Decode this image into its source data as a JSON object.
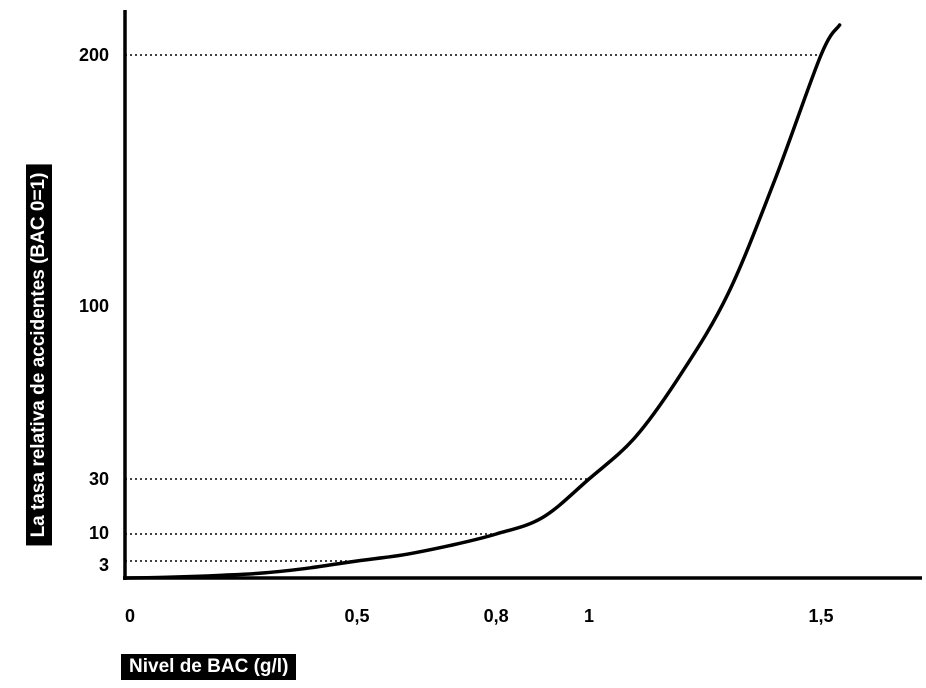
{
  "chart_data": {
    "type": "line",
    "xlabel": "Nivel de BAC (g/l)",
    "ylabel": "La tasa relativa de accidentes (BAC 0=1)",
    "x_ticks": [
      {
        "value": 0,
        "label": "0"
      },
      {
        "value": 0.5,
        "label": "0,5"
      },
      {
        "value": 0.8,
        "label": "0,8"
      },
      {
        "value": 1,
        "label": "1"
      },
      {
        "value": 1.5,
        "label": "1,5"
      }
    ],
    "y_ticks": [
      {
        "value": 3,
        "label": "3"
      },
      {
        "value": 10,
        "label": "10"
      },
      {
        "value": 30,
        "label": "30"
      },
      {
        "value": 100,
        "label": "100"
      },
      {
        "value": 200,
        "label": "200"
      }
    ],
    "xlim": [
      0,
      1.7
    ],
    "ylim": [
      1,
      220
    ],
    "y_scale": "log",
    "grid": false,
    "reference_lines": [
      {
        "x": 0.5,
        "y": 3
      },
      {
        "x": 0.8,
        "y": 10
      },
      {
        "x": 1,
        "y": 30
      },
      {
        "x": 1.5,
        "y": 200
      }
    ],
    "series": [
      {
        "x": [
          0,
          0.1,
          0.2,
          0.3,
          0.4,
          0.5,
          0.6,
          0.7,
          0.8,
          0.9,
          1.0,
          1.1,
          1.2,
          1.3,
          1.4,
          1.5,
          1.54
        ],
        "y": [
          1,
          1.1,
          1.3,
          1.6,
          2.2,
          3,
          4.6,
          7,
          10,
          16,
          30,
          47,
          73,
          105,
          150,
          200,
          220
        ]
      }
    ]
  }
}
